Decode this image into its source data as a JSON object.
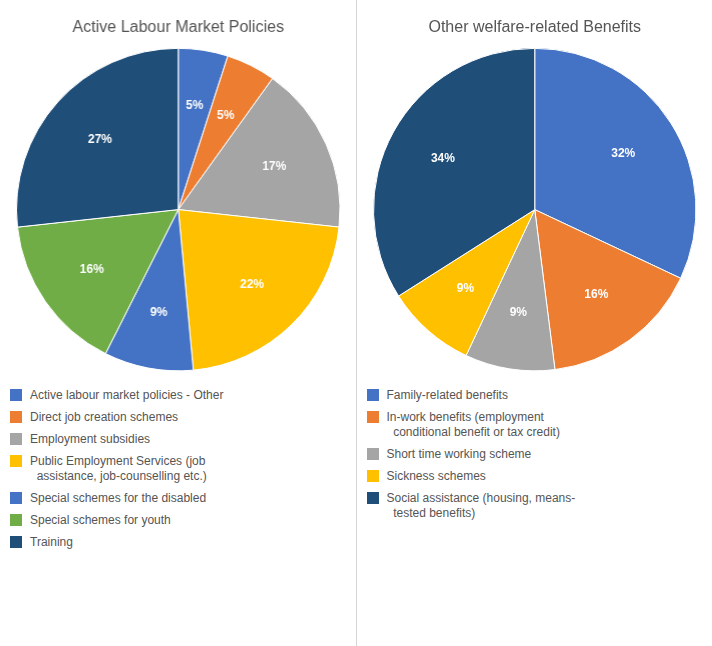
{
  "chart_data": [
    {
      "type": "pie",
      "title": "Active Labour Market Policies",
      "categories": [
        "Active labour market policies - Other",
        "Direct job creation schemes",
        "Employment subsidies",
        "Public Employment Services (job\n  assistance, job-counselling etc.)",
        "Special schemes for the disabled",
        "Special schemes for youth",
        "Training"
      ],
      "values": [
        5,
        5,
        17,
        22,
        9,
        16,
        27
      ],
      "value_labels": [
        "5%",
        "5%",
        "17%",
        "22%",
        "9%",
        "16%",
        "27%"
      ],
      "colors": [
        "#4472C4",
        "#ED7D31",
        "#A5A5A5",
        "#FFC000",
        "#4472C4",
        "#70AD47",
        "#1F4E79"
      ],
      "data_labels": true,
      "legend": "bottom"
    },
    {
      "type": "pie",
      "title": "Other welfare-related Benefits",
      "categories": [
        "Family-related benefits",
        "In-work benefits (employment\n  conditional benefit or tax credit)",
        "Short time working scheme",
        "Sickness schemes",
        "Social assistance (housing, means-\n  tested benefits)"
      ],
      "values": [
        32,
        16,
        9,
        9,
        34
      ],
      "value_labels": [
        "32%",
        "16%",
        "9%",
        "9%",
        "34%"
      ],
      "colors": [
        "#4472C4",
        "#ED7D31",
        "#A5A5A5",
        "#FFC000",
        "#1F4E79"
      ],
      "data_labels": true,
      "legend": "bottom"
    }
  ]
}
